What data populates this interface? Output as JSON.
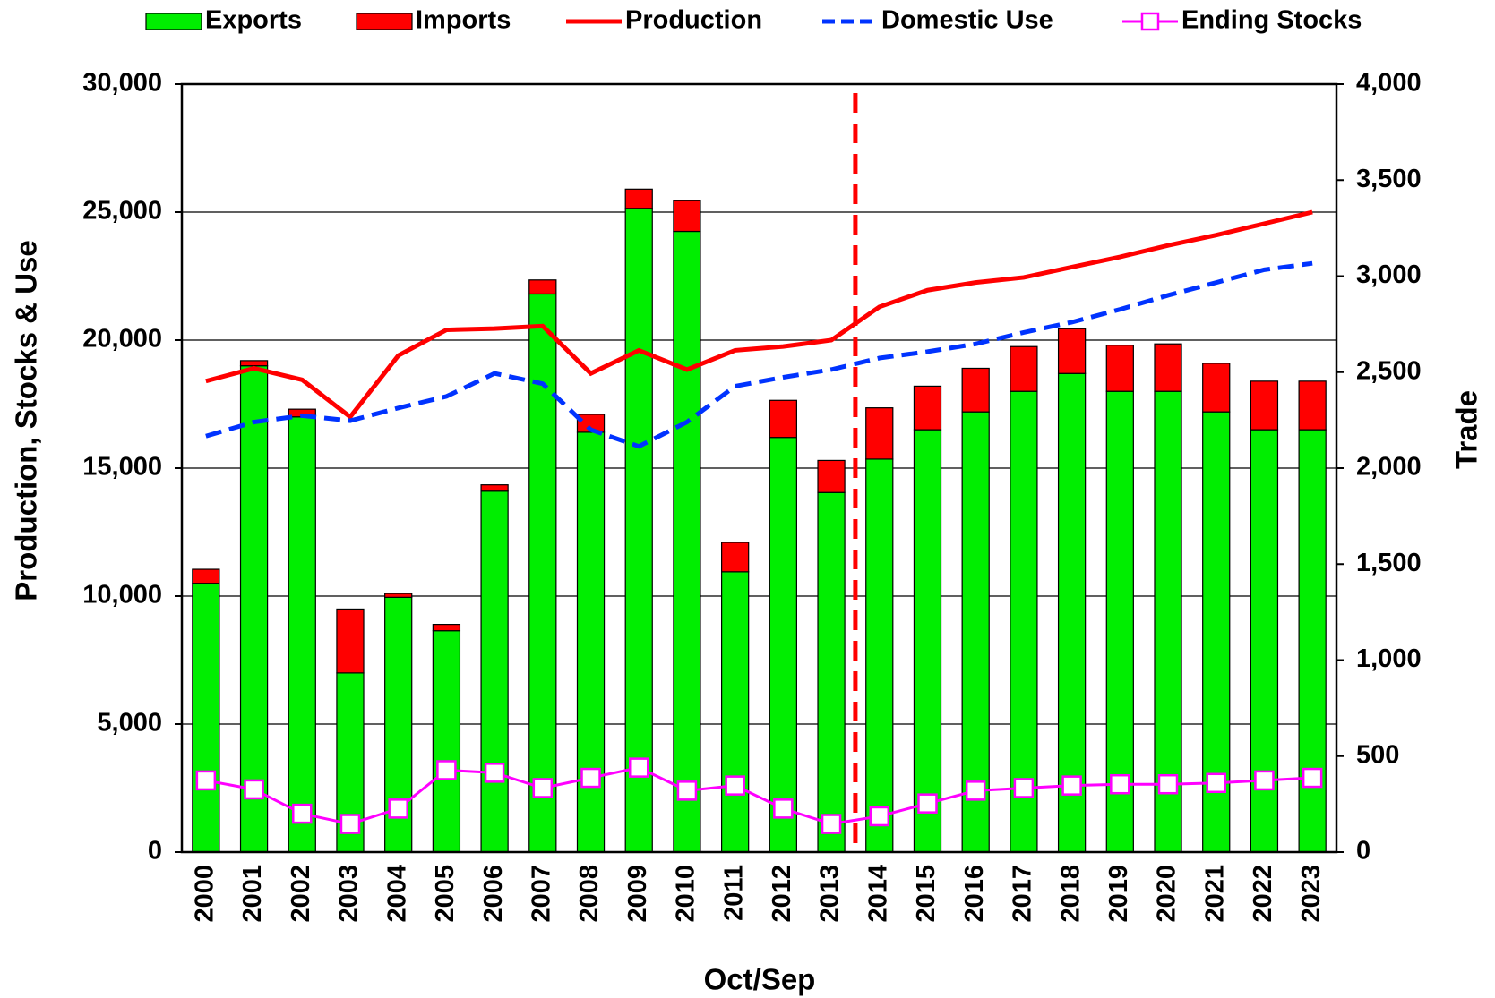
{
  "chart_data": {
    "type": "bar_line_combo",
    "categories": [
      "2000",
      "2001",
      "2002",
      "2003",
      "2004",
      "2005",
      "2006",
      "2007",
      "2008",
      "2009",
      "2010",
      "2011",
      "2012",
      "2013",
      "2014",
      "2015",
      "2016",
      "2017",
      "2018",
      "2019",
      "2020",
      "2021",
      "2022",
      "2023"
    ],
    "series": [
      {
        "name": "Exports",
        "type": "bar",
        "axis": "y2",
        "color": "#00ee00",
        "values": [
          1400,
          2533,
          2267,
          933,
          1327,
          1153,
          1880,
          2907,
          2187,
          3353,
          3233,
          1460,
          2160,
          1873,
          2047,
          2200,
          2293,
          2400,
          2493,
          2400,
          2400,
          2293,
          2200,
          2200
        ]
      },
      {
        "name": "Imports",
        "type": "bar",
        "axis": "y2",
        "color": "#ff0000",
        "values": [
          73,
          27,
          40,
          333,
          20,
          33,
          33,
          73,
          93,
          100,
          160,
          153,
          193,
          167,
          267,
          227,
          227,
          233,
          233,
          240,
          247,
          253,
          253,
          253
        ]
      },
      {
        "name": "Production",
        "type": "line",
        "color": "#ff0000",
        "dash": "solid",
        "values": [
          18400,
          18900,
          18450,
          17000,
          19400,
          20400,
          20450,
          20550,
          18700,
          19600,
          18850,
          19600,
          19750,
          20000,
          21300,
          21950,
          22250,
          22450,
          22850,
          23250,
          23700,
          24100,
          24550,
          25000
        ]
      },
      {
        "name": "Domestic Use",
        "type": "line",
        "color": "#0033ff",
        "dash": "dashed",
        "values": [
          16250,
          16800,
          17050,
          16850,
          17350,
          17800,
          18700,
          18300,
          16500,
          15850,
          16800,
          18200,
          18550,
          18850,
          19300,
          19550,
          19850,
          20300,
          20700,
          21200,
          21750,
          22250,
          22750,
          23000
        ]
      },
      {
        "name": "Ending Stocks",
        "type": "line",
        "color": "#ff00ff",
        "dash": "solid",
        "marker": "square",
        "values": [
          2800,
          2450,
          1500,
          1100,
          1700,
          3200,
          3100,
          2500,
          2900,
          3300,
          2400,
          2600,
          1700,
          1100,
          1400,
          1900,
          2400,
          2500,
          2600,
          2650,
          2650,
          2700,
          2800,
          2900
        ]
      }
    ],
    "ylabel": "Production, Stocks & Use",
    "y2label": "Trade",
    "xlabel": "Oct/Sep",
    "ylim": [
      0,
      30000
    ],
    "yticks": [
      0,
      {
        "value": 5000,
        "label": "5,000"
      },
      {
        "value": 10000,
        "label": "10,000"
      },
      {
        "value": 15000,
        "label": "15,000"
      },
      {
        "value": 20000,
        "label": "20,000"
      },
      {
        "value": 25000,
        "label": "25,000"
      },
      {
        "value": 30000,
        "label": "30,000"
      }
    ],
    "y2lim": [
      0,
      4000
    ],
    "y2ticks": [
      0,
      500,
      {
        "value": 1000,
        "label": "1,000"
      },
      {
        "value": 1500,
        "label": "1,500"
      },
      {
        "value": 2000,
        "label": "2,000"
      },
      {
        "value": 2500,
        "label": "2,500"
      },
      {
        "value": 3000,
        "label": "3,000"
      },
      {
        "value": 3500,
        "label": "3,500"
      },
      {
        "value": 4000,
        "label": "4,000"
      }
    ],
    "grid": true,
    "legend": "top"
  }
}
